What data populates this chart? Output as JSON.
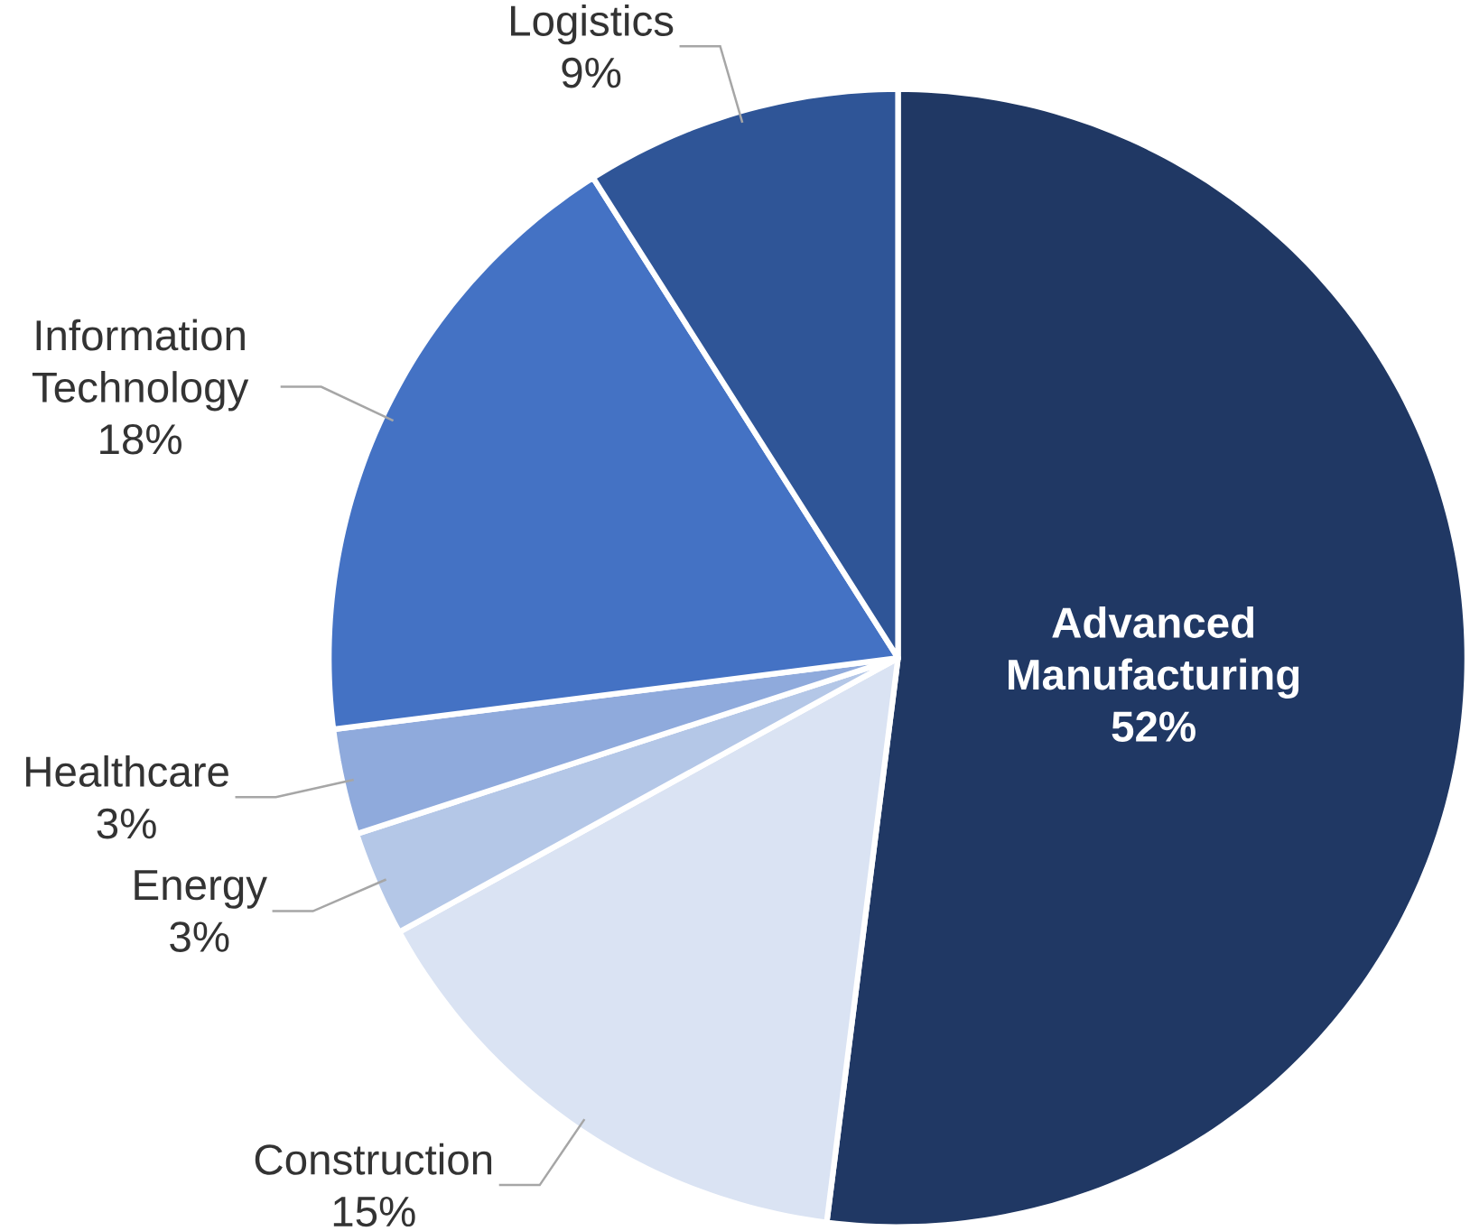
{
  "chart_data": {
    "type": "pie",
    "categories": [
      "Advanced Manufacturing",
      "Construction",
      "Energy",
      "Healthcare",
      "Information Technology",
      "Logistics"
    ],
    "values": [
      52,
      15,
      3,
      3,
      18,
      9
    ],
    "value_labels": [
      "52%",
      "15%",
      "3%",
      "3%",
      "18%",
      "9%"
    ],
    "colors": [
      "#203864",
      "#dae3f3",
      "#b4c7e7",
      "#8faadc",
      "#4472c4",
      "#2f5597"
    ]
  }
}
